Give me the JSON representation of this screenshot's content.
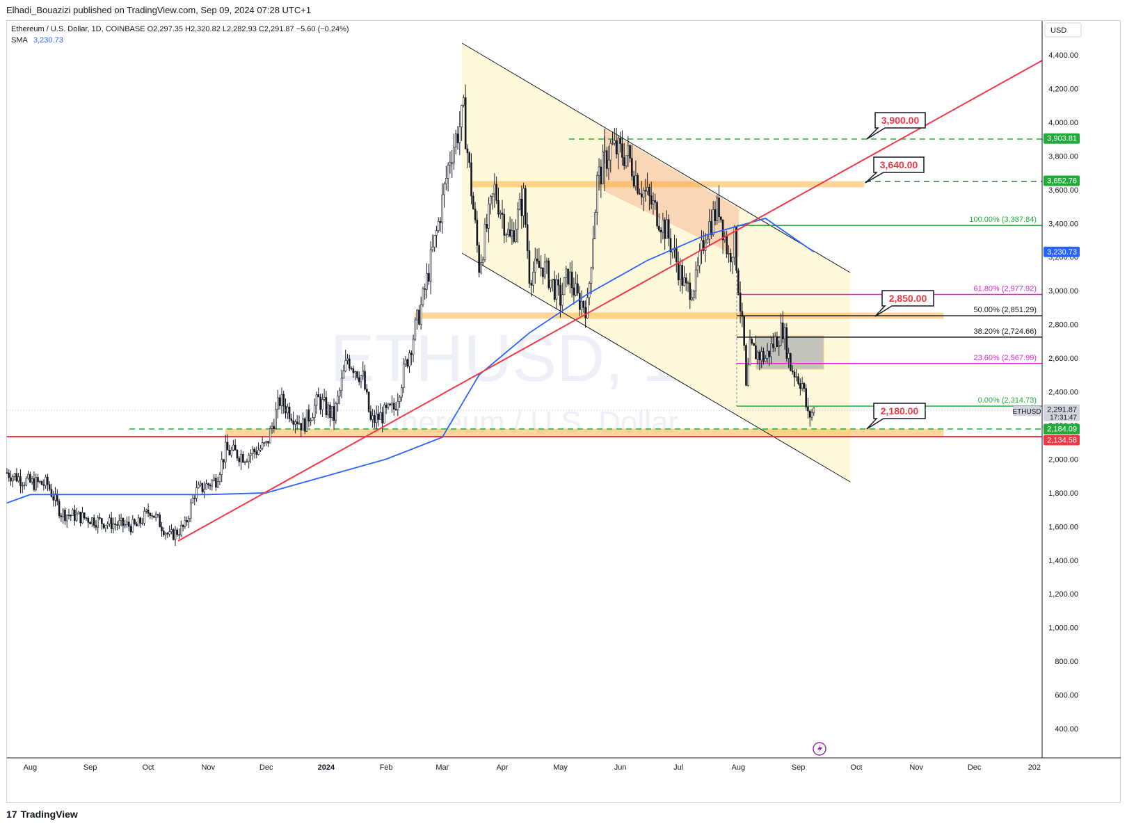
{
  "header": {
    "publisher": "Elhadi_Bouazizi published on TradingView.com, Sep 09, 2024 07:28 UTC+1",
    "symbol": "Ethereum / U.S. Dollar, 1D, COINBASE",
    "ohlc": "O2,297.35  H2,320.82  L2,282.93  C2,291.87  −5.60 (−0.24%)",
    "sma_label": "SMA",
    "sma_value": "3,230.73"
  },
  "footer": {
    "brand": "TradingView",
    "brand_mark": "17"
  },
  "watermark": {
    "symbol": "ETHUSD, 1D",
    "name": "Ethereum / U.S. Dollar"
  },
  "colors": {
    "up": "#131722",
    "sma": "#2962ff",
    "trend": "#f23645",
    "fib_green": "#22ab3a",
    "fib_pink": "#e91ed6",
    "zone_orange": "#ffa726",
    "channel_fill": "#fff9d9",
    "red_zone": "#f7c9a8",
    "green_dash": "#22ab3a"
  },
  "axis": {
    "currency": "USD",
    "y_ticks": [
      "4,400.00",
      "4,200.00",
      "4,000.00",
      "3,800.00",
      "3,600.00",
      "3,400.00",
      "3,200.00",
      "3,000.00",
      "2,800.00",
      "2,600.00",
      "2,400.00",
      "2,200.00",
      "2,000.00",
      "1,800.00",
      "1,600.00",
      "1,400.00",
      "1,200.00",
      "1,000.00",
      "800.00",
      "600.00",
      "400.00"
    ],
    "x_ticks": [
      "Aug",
      "Sep",
      "Oct",
      "Nov",
      "Dec",
      "2024",
      "Feb",
      "Mar",
      "Apr",
      "May",
      "Jun",
      "Jul",
      "Aug",
      "Sep",
      "Oct",
      "Nov",
      "Dec",
      "202"
    ]
  },
  "price_tags": [
    {
      "text": "3,903.81",
      "color": "#22ab3a",
      "value": 3903.81
    },
    {
      "text": "3,652.76",
      "color": "#22ab3a",
      "value": 3652.76
    },
    {
      "text": "3,230.73",
      "color": "#2962ff",
      "value": 3230.73
    },
    {
      "text": "2,291.87",
      "color": "#d1d4dc",
      "value": 2291.87,
      "sub": "17:31:47",
      "dark": true
    },
    {
      "text": "2,184.09",
      "color": "#22ab3a",
      "value": 2184.09
    },
    {
      "text": "2,134.58",
      "color": "#f23645",
      "value": 2134.58
    }
  ],
  "symbol_tag": "ETHUSD",
  "callouts": [
    {
      "text": "3,900.00",
      "value": 3900
    },
    {
      "text": "3,640.00",
      "value": 3640
    },
    {
      "text": "2,850.00",
      "value": 2850
    },
    {
      "text": "2,180.00",
      "value": 2180
    }
  ],
  "fib_levels": [
    {
      "label": "100.00% (3,387.84)",
      "value": 3387.84,
      "color": "#22ab3a"
    },
    {
      "label": "61.80% (2,977.92)",
      "value": 2977.92,
      "color": "#e91ed6"
    },
    {
      "label": "50.00% (2,851.29)",
      "value": 2851.29,
      "color": "#131722"
    },
    {
      "label": "38.20% (2,724.66)",
      "value": 2724.66,
      "color": "#131722"
    },
    {
      "label": "23.60% (2,567.99)",
      "value": 2567.99,
      "color": "#e91ed6"
    },
    {
      "label": "0.00% (2,314.73)",
      "value": 2314.73,
      "color": "#22ab3a"
    }
  ],
  "chart_data": {
    "type": "candlestick",
    "title": "Ethereum / U.S. Dollar, 1D, COINBASE",
    "ylabel": "USD",
    "ylim": [
      250,
      4550
    ],
    "x_range": [
      "2023-07-20",
      "2025-01-05"
    ],
    "series": [
      {
        "name": "ETHUSD close",
        "points": [
          [
            "2023-07-20",
            1920
          ],
          [
            "2023-08-01",
            1860
          ],
          [
            "2023-08-10",
            1850
          ],
          [
            "2023-08-17",
            1680
          ],
          [
            "2023-08-30",
            1650
          ],
          [
            "2023-09-10",
            1620
          ],
          [
            "2023-09-25",
            1600
          ],
          [
            "2023-10-02",
            1700
          ],
          [
            "2023-10-12",
            1540
          ],
          [
            "2023-10-20",
            1600
          ],
          [
            "2023-10-25",
            1800
          ],
          [
            "2023-11-05",
            1880
          ],
          [
            "2023-11-10",
            2050
          ],
          [
            "2023-11-20",
            2020
          ],
          [
            "2023-12-01",
            2080
          ],
          [
            "2023-12-08",
            2350
          ],
          [
            "2023-12-20",
            2200
          ],
          [
            "2023-12-28",
            2350
          ],
          [
            "2024-01-05",
            2250
          ],
          [
            "2024-01-12",
            2600
          ],
          [
            "2024-01-20",
            2480
          ],
          [
            "2024-01-24",
            2220
          ],
          [
            "2024-02-05",
            2300
          ],
          [
            "2024-02-12",
            2600
          ],
          [
            "2024-02-20",
            2950
          ],
          [
            "2024-02-28",
            3400
          ],
          [
            "2024-03-05",
            3800
          ],
          [
            "2024-03-12",
            4050
          ],
          [
            "2024-03-16",
            3600
          ],
          [
            "2024-03-20",
            3150
          ],
          [
            "2024-03-28",
            3600
          ],
          [
            "2024-04-05",
            3300
          ],
          [
            "2024-04-12",
            3550
          ],
          [
            "2024-04-15",
            3100
          ],
          [
            "2024-04-22",
            3150
          ],
          [
            "2024-05-01",
            2950
          ],
          [
            "2024-05-05",
            3100
          ],
          [
            "2024-05-10",
            2950
          ],
          [
            "2024-05-15",
            2900
          ],
          [
            "2024-05-20",
            3650
          ],
          [
            "2024-05-27",
            3850
          ],
          [
            "2024-06-05",
            3800
          ],
          [
            "2024-06-10",
            3650
          ],
          [
            "2024-06-18",
            3500
          ],
          [
            "2024-06-25",
            3350
          ],
          [
            "2024-07-05",
            3000
          ],
          [
            "2024-07-10",
            3050
          ],
          [
            "2024-07-15",
            3350
          ],
          [
            "2024-07-22",
            3500
          ],
          [
            "2024-07-27",
            3200
          ],
          [
            "2024-07-30",
            3300
          ],
          [
            "2024-08-04",
            2650
          ],
          [
            "2024-08-05",
            2400
          ],
          [
            "2024-08-07",
            2650
          ],
          [
            "2024-08-15",
            2600
          ],
          [
            "2024-08-24",
            2780
          ],
          [
            "2024-08-28",
            2550
          ],
          [
            "2024-09-03",
            2450
          ],
          [
            "2024-09-06",
            2250
          ],
          [
            "2024-09-09",
            2291.87
          ]
        ]
      },
      {
        "name": "SMA",
        "points": [
          [
            "2023-07-20",
            1740
          ],
          [
            "2023-08-01",
            1790
          ],
          [
            "2023-09-01",
            1790
          ],
          [
            "2023-10-01",
            1790
          ],
          [
            "2023-11-01",
            1790
          ],
          [
            "2023-12-01",
            1800
          ],
          [
            "2024-01-01",
            1900
          ],
          [
            "2024-02-01",
            2000
          ],
          [
            "2024-03-01",
            2130
          ],
          [
            "2024-03-20",
            2500
          ],
          [
            "2024-04-15",
            2750
          ],
          [
            "2024-05-15",
            2980
          ],
          [
            "2024-06-15",
            3180
          ],
          [
            "2024-07-15",
            3330
          ],
          [
            "2024-08-15",
            3430
          ],
          [
            "2024-09-09",
            3230.73
          ]
        ]
      }
    ],
    "drawings": {
      "trendline": [
        [
          "2023-10-14",
          1530
        ],
        [
          "2025-01-01",
          4380
        ]
      ],
      "channel_upper": [
        [
          "2024-03-07",
          4460
        ],
        [
          "2024-09-25",
          3130
        ]
      ],
      "channel_lower": [
        [
          "2024-03-07",
          3210
        ],
        [
          "2024-09-25",
          1890
        ]
      ],
      "horizontal": [
        2134.58,
        2184.09,
        3652.76,
        3903.81
      ]
    }
  }
}
